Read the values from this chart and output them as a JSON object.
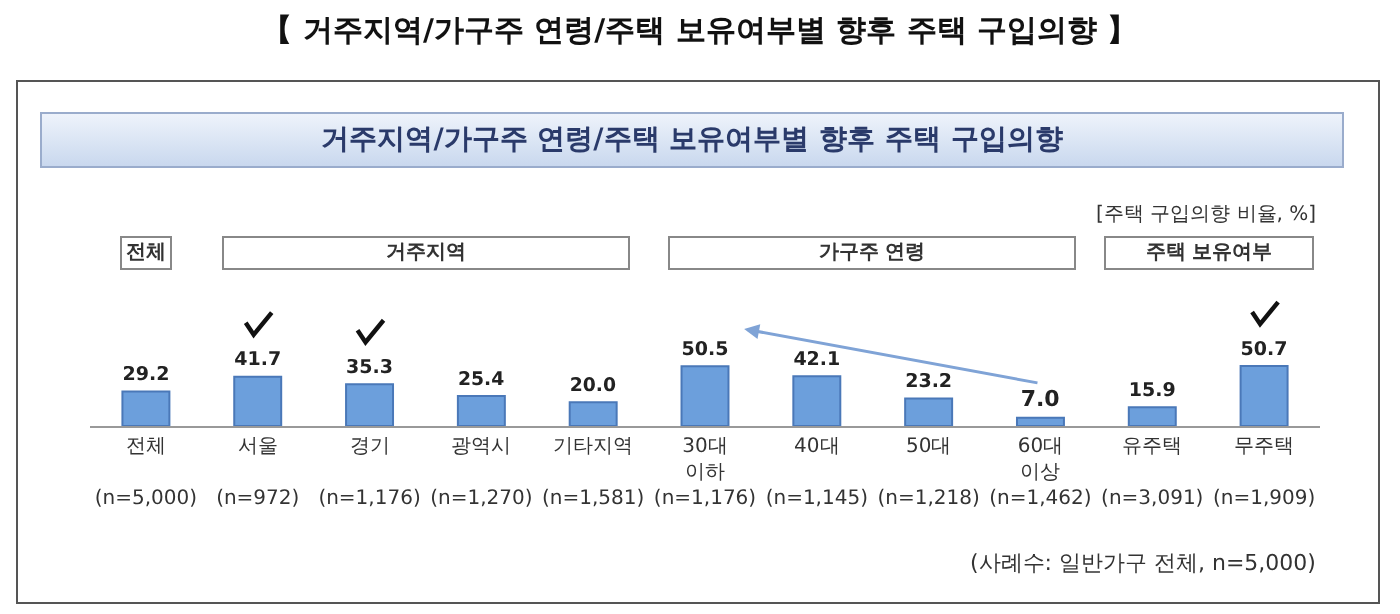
{
  "chart_data": {
    "type": "bar",
    "title": "【 거주지역/가구주 연령/주택 보유여부별 향후 주택 구입의향 】",
    "subtitle": "거주지역/가구주 연령/주택 보유여부별 향후 주택 구입의향",
    "categories": [
      "전체\n\n(n=5,000)",
      "서울\n\n(n=972)",
      "경기\n\n(n=1,176)",
      "광역시\n\n(n=1,270)",
      "기타지역\n\n(n=1,581)",
      "30대\n이하\n(n=1,176)",
      "40대\n\n(n=1,145)",
      "50대\n\n(n=1,218)",
      "60대\n이상\n(n=1,462)",
      "유주택\n\n(n=3,091)",
      "무주택\n\n(n=1,909)"
    ],
    "values": [
      29.2,
      41.7,
      35.3,
      25.4,
      20.0,
      50.5,
      42.1,
      23.2,
      7.0,
      15.9,
      50.7
    ],
    "value_labels": [
      "29.2",
      "41.7",
      "35.3",
      "25.4",
      "20.0",
      "50.5",
      "42.1",
      "23.2",
      "7.0",
      "15.9",
      "50.7"
    ],
    "color": "#6c9fdc",
    "annotations": [
      "[주택 구입의향 비율, %]",
      "전체",
      "거주지역",
      "가구주 연령",
      "주택 보유여부",
      "(사례수: 일반가구 전체, n=5,000)"
    ]
  }
}
